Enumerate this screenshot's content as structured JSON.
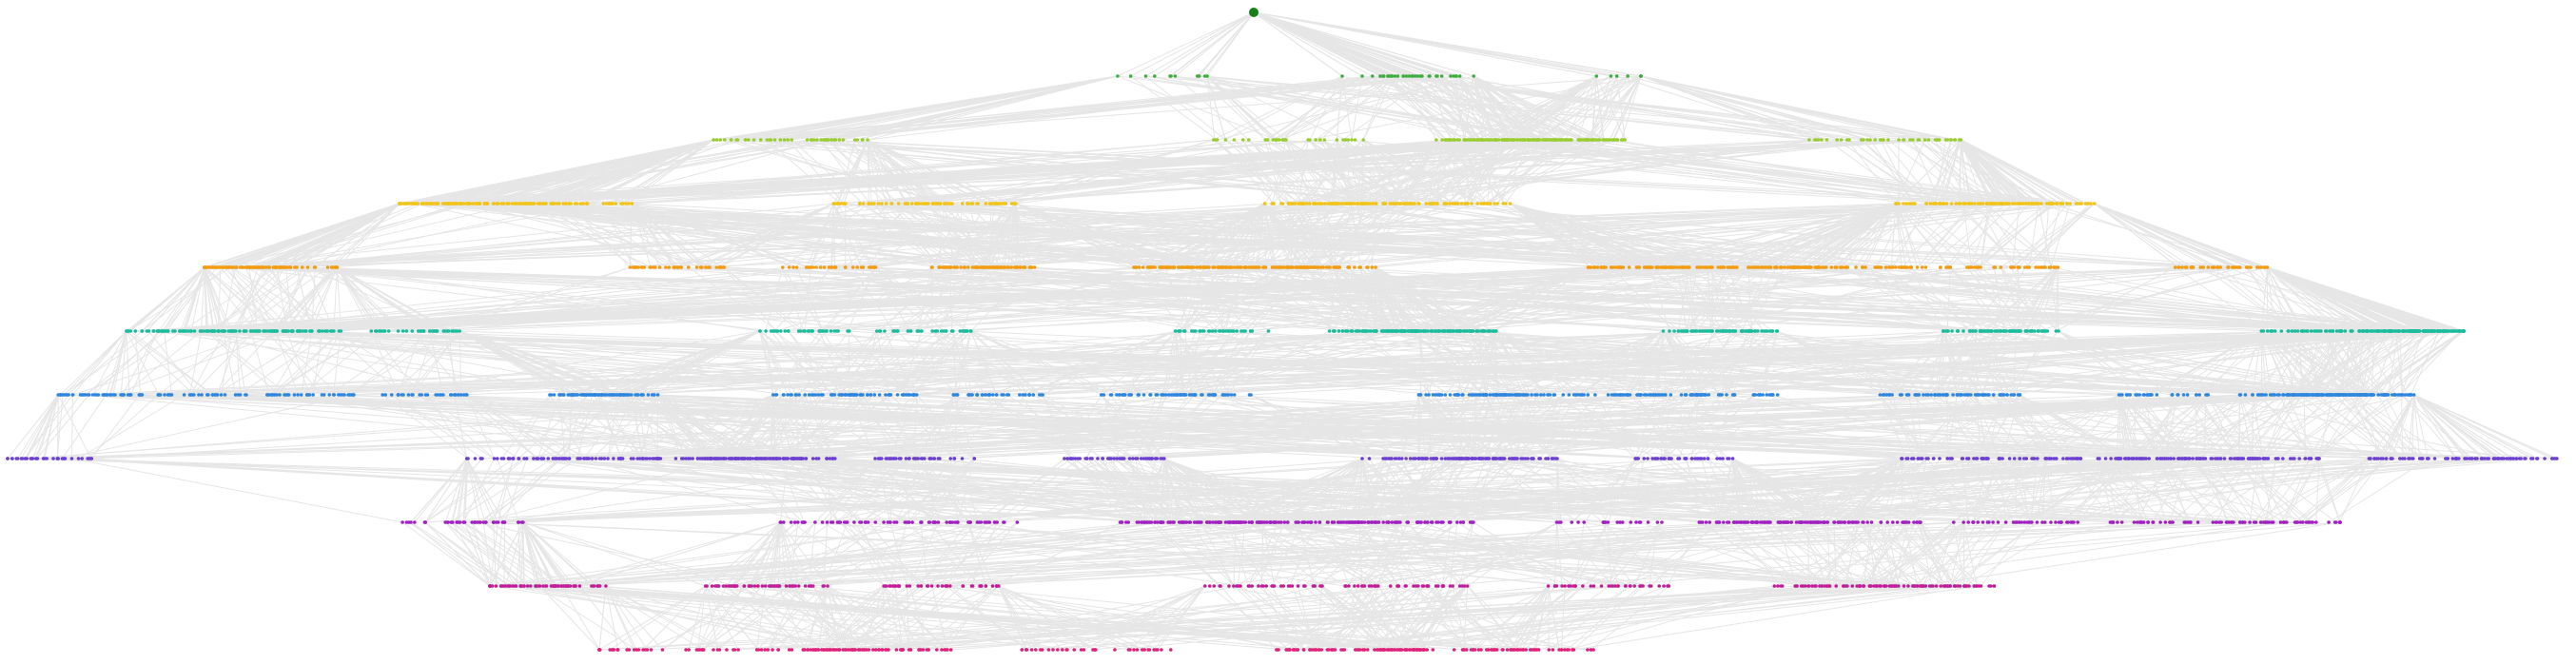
{
  "diagram": {
    "type": "hierarchical-tree",
    "edge_color": "#e6e6e6",
    "root_color": "#1a7f1a",
    "levels": [
      {
        "depth": 0,
        "node_count": 1,
        "color": "#1a7f1a"
      },
      {
        "depth": 1,
        "node_count": 60,
        "color": "#3fae3f"
      },
      {
        "depth": 2,
        "node_count": 300,
        "color": "#9acd32"
      },
      {
        "depth": 3,
        "node_count": 560,
        "color": "#f0c419"
      },
      {
        "depth": 4,
        "node_count": 760,
        "color": "#f39c12"
      },
      {
        "depth": 5,
        "node_count": 900,
        "color": "#1abc9c"
      },
      {
        "depth": 6,
        "node_count": 1000,
        "color": "#2e86de"
      },
      {
        "depth": 7,
        "node_count": 880,
        "color": "#6c3fd1"
      },
      {
        "depth": 8,
        "node_count": 640,
        "color": "#a020c0"
      },
      {
        "depth": 9,
        "node_count": 420,
        "color": "#c21e9a"
      },
      {
        "depth": 10,
        "node_count": 330,
        "color": "#e0217a"
      }
    ]
  }
}
